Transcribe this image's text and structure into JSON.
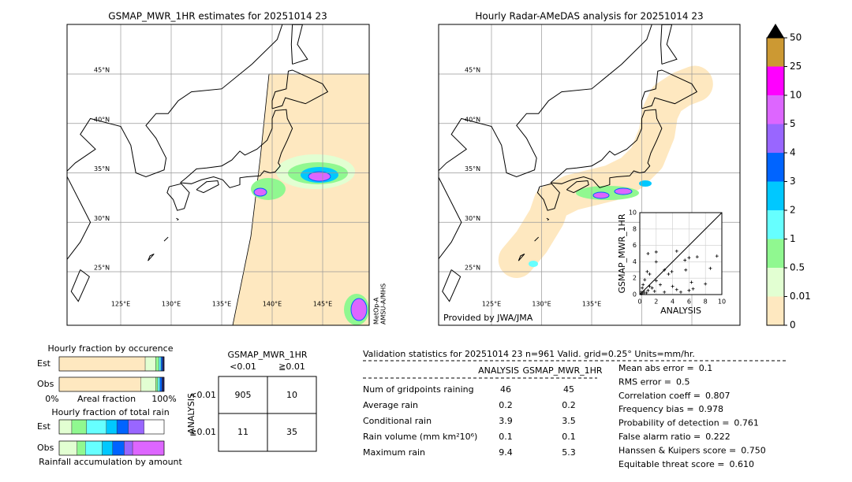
{
  "left_map": {
    "title": "GSMAP_MWR_1HR estimates for 20251014 23",
    "lat_labels": [
      "45°N",
      "40°N",
      "35°N",
      "30°N",
      "25°N"
    ],
    "lon_labels": [
      "125°E",
      "130°E",
      "135°E",
      "140°E",
      "145°E"
    ],
    "sensor_label": [
      "MetOp-A",
      "AMSU-A/MHS"
    ]
  },
  "right_map": {
    "title": "Hourly Radar-AMeDAS analysis for 20251014 23",
    "lat_labels": [
      "45°N",
      "40°N",
      "35°N",
      "30°N",
      "25°N"
    ],
    "lon_labels": [
      "125°E",
      "130°E",
      "135°E"
    ],
    "credit": "Provided by JWA/JMA"
  },
  "colorbar": {
    "ticks": [
      0,
      0.01,
      0.5,
      1,
      2,
      3,
      4,
      5,
      10,
      25,
      50
    ],
    "colors": [
      "#fee8c0",
      "#e2ffd2",
      "#90f890",
      "#66ffff",
      "#00c8ff",
      "#0064ff",
      "#9966ff",
      "#dd66ff",
      "#ff00ff",
      "#cc9933"
    ],
    "over_color": "#000000"
  },
  "chart_data": {
    "type": "scatter",
    "xlabel": "ANALYSIS",
    "ylabel": "GSMAP_MWR_1HR",
    "xlim": [
      0,
      10
    ],
    "ylim": [
      0,
      10
    ],
    "xticks": [
      0,
      2,
      4,
      6,
      8,
      10
    ],
    "yticks": [
      0,
      2,
      4,
      6,
      8,
      10
    ],
    "color": "#000000",
    "x": [
      0.2,
      0.5,
      0.3,
      0.8,
      1,
      0.4,
      1.2,
      0.6,
      1.5,
      0.9,
      1.2,
      2,
      1.8,
      2.5,
      3,
      3.5,
      3.9,
      4,
      4.5,
      5,
      6,
      6.5,
      1,
      2,
      4.5,
      5.5,
      6,
      2,
      3,
      6.3,
      7,
      8,
      9.4,
      5.6,
      8.6,
      0.2,
      0.5
    ],
    "y": [
      0.3,
      0.4,
      0.8,
      0.2,
      0.5,
      1.2,
      1,
      1.8,
      0.8,
      2.8,
      2.5,
      1.7,
      0.4,
      1.2,
      0.3,
      2.5,
      2.8,
      1,
      0.6,
      0.3,
      0.5,
      0.7,
      5,
      5.2,
      5.3,
      4.2,
      4.5,
      4,
      3,
      1.5,
      4.6,
      1.3,
      4.7,
      3,
      3.2,
      0.1,
      0.2
    ]
  },
  "occurrence": {
    "title": "Hourly fraction by occurence",
    "rows": [
      "Est",
      "Obs"
    ],
    "axis_labels": [
      "0%",
      "Areal fraction",
      "100%"
    ],
    "colors": [
      "#fee8c0",
      "#e2ffd2",
      "#90f890",
      "#66ffff",
      "#0064ff",
      "#222266"
    ],
    "est": [
      82,
      10,
      3,
      2,
      1.5,
      1.5
    ],
    "obs": [
      78,
      14,
      2,
      2,
      2,
      2
    ]
  },
  "total_rain": {
    "title": "Hourly fraction of total rain",
    "rows": [
      "Est",
      "Obs"
    ],
    "footer": "Rainfall accumulation by amount",
    "colors": [
      "#e2ffd2",
      "#90f890",
      "#66ffff",
      "#00c8ff",
      "#0064ff",
      "#9966ff",
      "#dd66ff"
    ],
    "est": [
      12,
      14,
      19,
      10,
      11,
      15,
      0
    ],
    "obs": [
      17,
      8,
      16,
      10,
      11,
      8,
      30
    ]
  },
  "contingency": {
    "title": "GSMAP_MWR_1HR",
    "col_labels": [
      "<0.01",
      "≧0.01"
    ],
    "row_title": "ANALYSIS",
    "row_labels": [
      "<0.01",
      "≧0.01"
    ],
    "cells": [
      [
        905,
        10
      ],
      [
        11,
        35
      ]
    ]
  },
  "validation": {
    "header": "Validation statistics for 20251014 23  n=961 Valid. grid=0.25° Units=mm/hr.",
    "columns": [
      "ANALYSIS",
      "GSMAP_MWR_1HR"
    ],
    "rows": [
      {
        "label": "Num of gridpoints raining",
        "analysis": 46,
        "estimate": 45
      },
      {
        "label": "Average rain",
        "analysis": 0.2,
        "estimate": 0.2
      },
      {
        "label": "Conditional rain",
        "analysis": 3.9,
        "estimate": 3.5
      },
      {
        "label": "Rain volume (mm km²10⁶)",
        "analysis": 0.1,
        "estimate": 0.1
      },
      {
        "label": "Maximum rain",
        "analysis": 9.4,
        "estimate": 5.3
      }
    ],
    "scores": [
      {
        "label": "Mean abs error =",
        "value": "0.1"
      },
      {
        "label": "RMS error =",
        "value": "0.5"
      },
      {
        "label": "Correlation coeff =",
        "value": "0.807"
      },
      {
        "label": "Frequency bias =",
        "value": "0.978"
      },
      {
        "label": "Probability of detection =",
        "value": "0.761"
      },
      {
        "label": "False alarm ratio =",
        "value": "0.222"
      },
      {
        "label": "Hanssen & Kuipers score =",
        "value": "0.750"
      },
      {
        "label": "Equitable threat score =",
        "value": "0.610"
      }
    ]
  }
}
